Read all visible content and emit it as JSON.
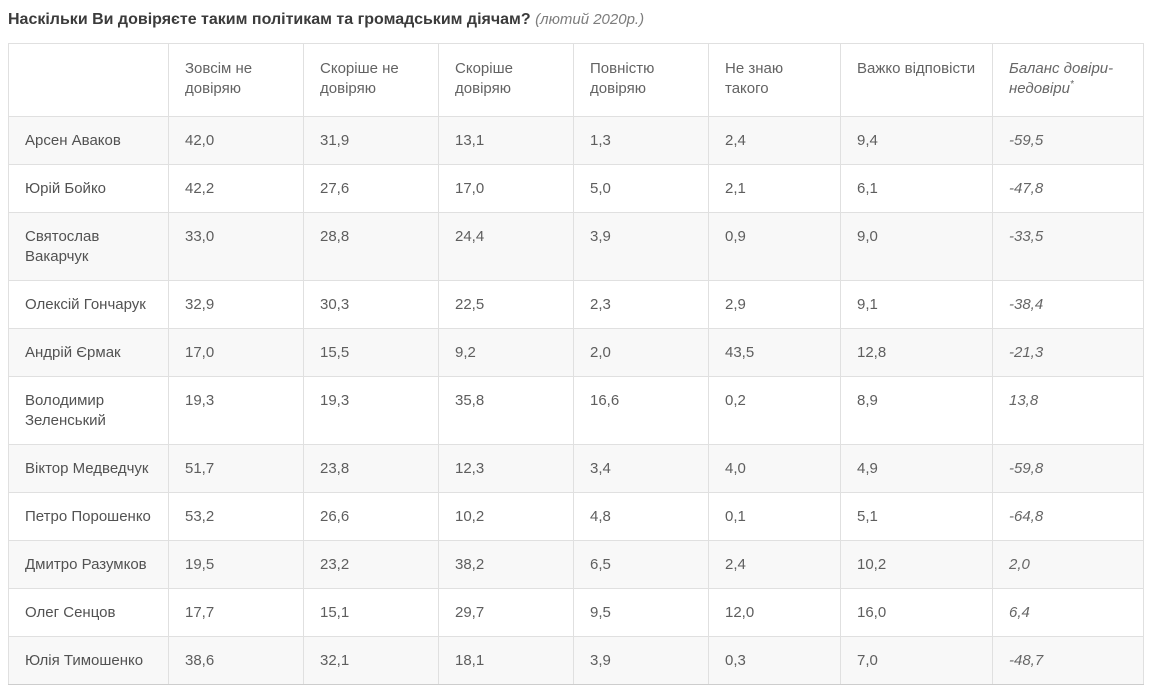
{
  "title": {
    "question": "Наскільки Ви довіряєте таким політикам та громадським діячам?",
    "period": "(лютий 2020р.)"
  },
  "table": {
    "corner_label": "",
    "columns": [
      "Зовсім не довіряю",
      "Скоріше не довіряю",
      "Скоріше довіряю",
      "Повністю довіряю",
      "Не знаю такого",
      "Важко відповісти"
    ],
    "balance_header": {
      "label": "Баланс довіри-недовіри",
      "asterisk": "*"
    },
    "rows": [
      {
        "name": "Арсен Аваков",
        "values": [
          "42,0",
          "31,9",
          "13,1",
          "1,3",
          "2,4",
          "9,4"
        ],
        "balance": "-59,5"
      },
      {
        "name": "Юрій Бойко",
        "values": [
          "42,2",
          "27,6",
          "17,0",
          "5,0",
          "2,1",
          "6,1"
        ],
        "balance": "-47,8"
      },
      {
        "name": "Святослав Вакарчук",
        "values": [
          "33,0",
          "28,8",
          "24,4",
          "3,9",
          "0,9",
          "9,0"
        ],
        "balance": "-33,5"
      },
      {
        "name": "Олексій Гончарук",
        "values": [
          "32,9",
          "30,3",
          "22,5",
          "2,3",
          "2,9",
          "9,1"
        ],
        "balance": "-38,4"
      },
      {
        "name": "Андрій Єрмак",
        "values": [
          "17,0",
          "15,5",
          "9,2",
          "2,0",
          "43,5",
          "12,8"
        ],
        "balance": "-21,3"
      },
      {
        "name": "Володимир Зеленський",
        "values": [
          "19,3",
          "19,3",
          "35,8",
          "16,6",
          "0,2",
          "8,9"
        ],
        "balance": "13,8"
      },
      {
        "name": "Віктор Медведчук",
        "values": [
          "51,7",
          "23,8",
          "12,3",
          "3,4",
          "4,0",
          "4,9"
        ],
        "balance": "-59,8"
      },
      {
        "name": "Петро Порошенко",
        "values": [
          "53,2",
          "26,6",
          "10,2",
          "4,8",
          "0,1",
          "5,1"
        ],
        "balance": "-64,8"
      },
      {
        "name": "Дмитро Разумков",
        "values": [
          "19,5",
          "23,2",
          "38,2",
          "6,5",
          "2,4",
          "10,2"
        ],
        "balance": "2,0"
      },
      {
        "name": "Олег Сенцов",
        "values": [
          "17,7",
          "15,1",
          "29,7",
          "9,5",
          "12,0",
          "16,0"
        ],
        "balance": "6,4"
      },
      {
        "name": "Юлія Тимошенко",
        "values": [
          "38,6",
          "32,1",
          "18,1",
          "3,9",
          "0,3",
          "7,0"
        ],
        "balance": "-48,7"
      }
    ]
  },
  "chart_data": {
    "type": "table",
    "title": "Наскільки Ви довіряєте таким політикам та громадським діячам? (лютий 2020р.)",
    "columns": [
      "Зовсім не довіряю",
      "Скоріше не довіряю",
      "Скоріше довіряю",
      "Повністю довіряю",
      "Не знаю такого",
      "Важко відповісти",
      "Баланс довіри-недовіри*"
    ],
    "rows": [
      {
        "name": "Арсен Аваков",
        "values": [
          42.0,
          31.9,
          13.1,
          1.3,
          2.4,
          9.4
        ],
        "balance": -59.5
      },
      {
        "name": "Юрій Бойко",
        "values": [
          42.2,
          27.6,
          17.0,
          5.0,
          2.1,
          6.1
        ],
        "balance": -47.8
      },
      {
        "name": "Святослав Вакарчук",
        "values": [
          33.0,
          28.8,
          24.4,
          3.9,
          0.9,
          9.0
        ],
        "balance": -33.5
      },
      {
        "name": "Олексій Гончарук",
        "values": [
          32.9,
          30.3,
          22.5,
          2.3,
          2.9,
          9.1
        ],
        "balance": -38.4
      },
      {
        "name": "Андрій Єрмак",
        "values": [
          17.0,
          15.5,
          9.2,
          2.0,
          43.5,
          12.8
        ],
        "balance": -21.3
      },
      {
        "name": "Володимир Зеленський",
        "values": [
          19.3,
          19.3,
          35.8,
          16.6,
          0.2,
          8.9
        ],
        "balance": 13.8
      },
      {
        "name": "Віктор Медведчук",
        "values": [
          51.7,
          23.8,
          12.3,
          3.4,
          4.0,
          4.9
        ],
        "balance": -59.8
      },
      {
        "name": "Петро Порошенко",
        "values": [
          53.2,
          26.6,
          10.2,
          4.8,
          0.1,
          5.1
        ],
        "balance": -64.8
      },
      {
        "name": "Дмитро Разумков",
        "values": [
          19.5,
          23.2,
          38.2,
          6.5,
          2.4,
          10.2
        ],
        "balance": 2.0
      },
      {
        "name": "Олег Сенцов",
        "values": [
          17.7,
          15.1,
          29.7,
          9.5,
          12.0,
          16.0
        ],
        "balance": 6.4
      },
      {
        "name": "Юлія Тимошенко",
        "values": [
          38.6,
          32.1,
          18.1,
          3.9,
          0.3,
          7.0
        ],
        "balance": -48.7
      }
    ]
  }
}
